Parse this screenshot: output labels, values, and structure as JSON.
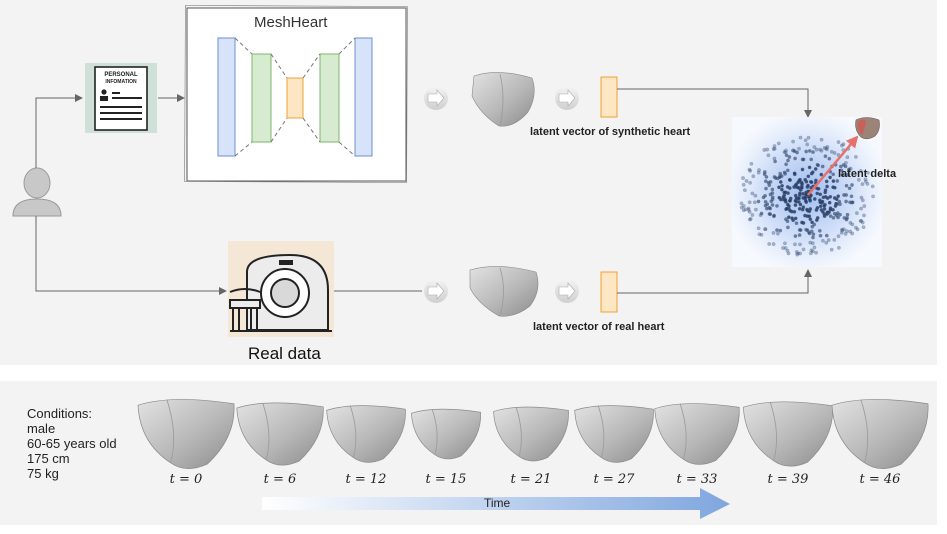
{
  "model_title": "MeshHeart",
  "document_icon_text": [
    "PERSONAL",
    "INFOMATION"
  ],
  "real_data_label": "Real data",
  "latent_labels": {
    "synthetic": "latent vector of synthetic heart",
    "real": "latent vector of real heart",
    "delta": "latent delta"
  },
  "conditions": {
    "heading": "Conditions:",
    "items": [
      "male",
      "60-65 years old",
      "175 cm",
      "75 kg"
    ]
  },
  "time_steps": [
    "t = 0",
    "t = 6",
    "t = 12",
    "t = 15",
    "t = 21",
    "t = 27",
    "t = 33",
    "t = 39",
    "t = 46"
  ],
  "time_axis_label": "Time",
  "colors": {
    "encoder_blue": "#d6e3f8",
    "encoder_blue_stroke": "#6f8fd0",
    "decoder_green": "#d6ebcf",
    "decoder_green_stroke": "#7fb46e",
    "latent_orange": "#fde6c4",
    "latent_orange_stroke": "#f0a030",
    "delta_arrow": "#e8706a",
    "time_arrow": "#7fa6de"
  }
}
